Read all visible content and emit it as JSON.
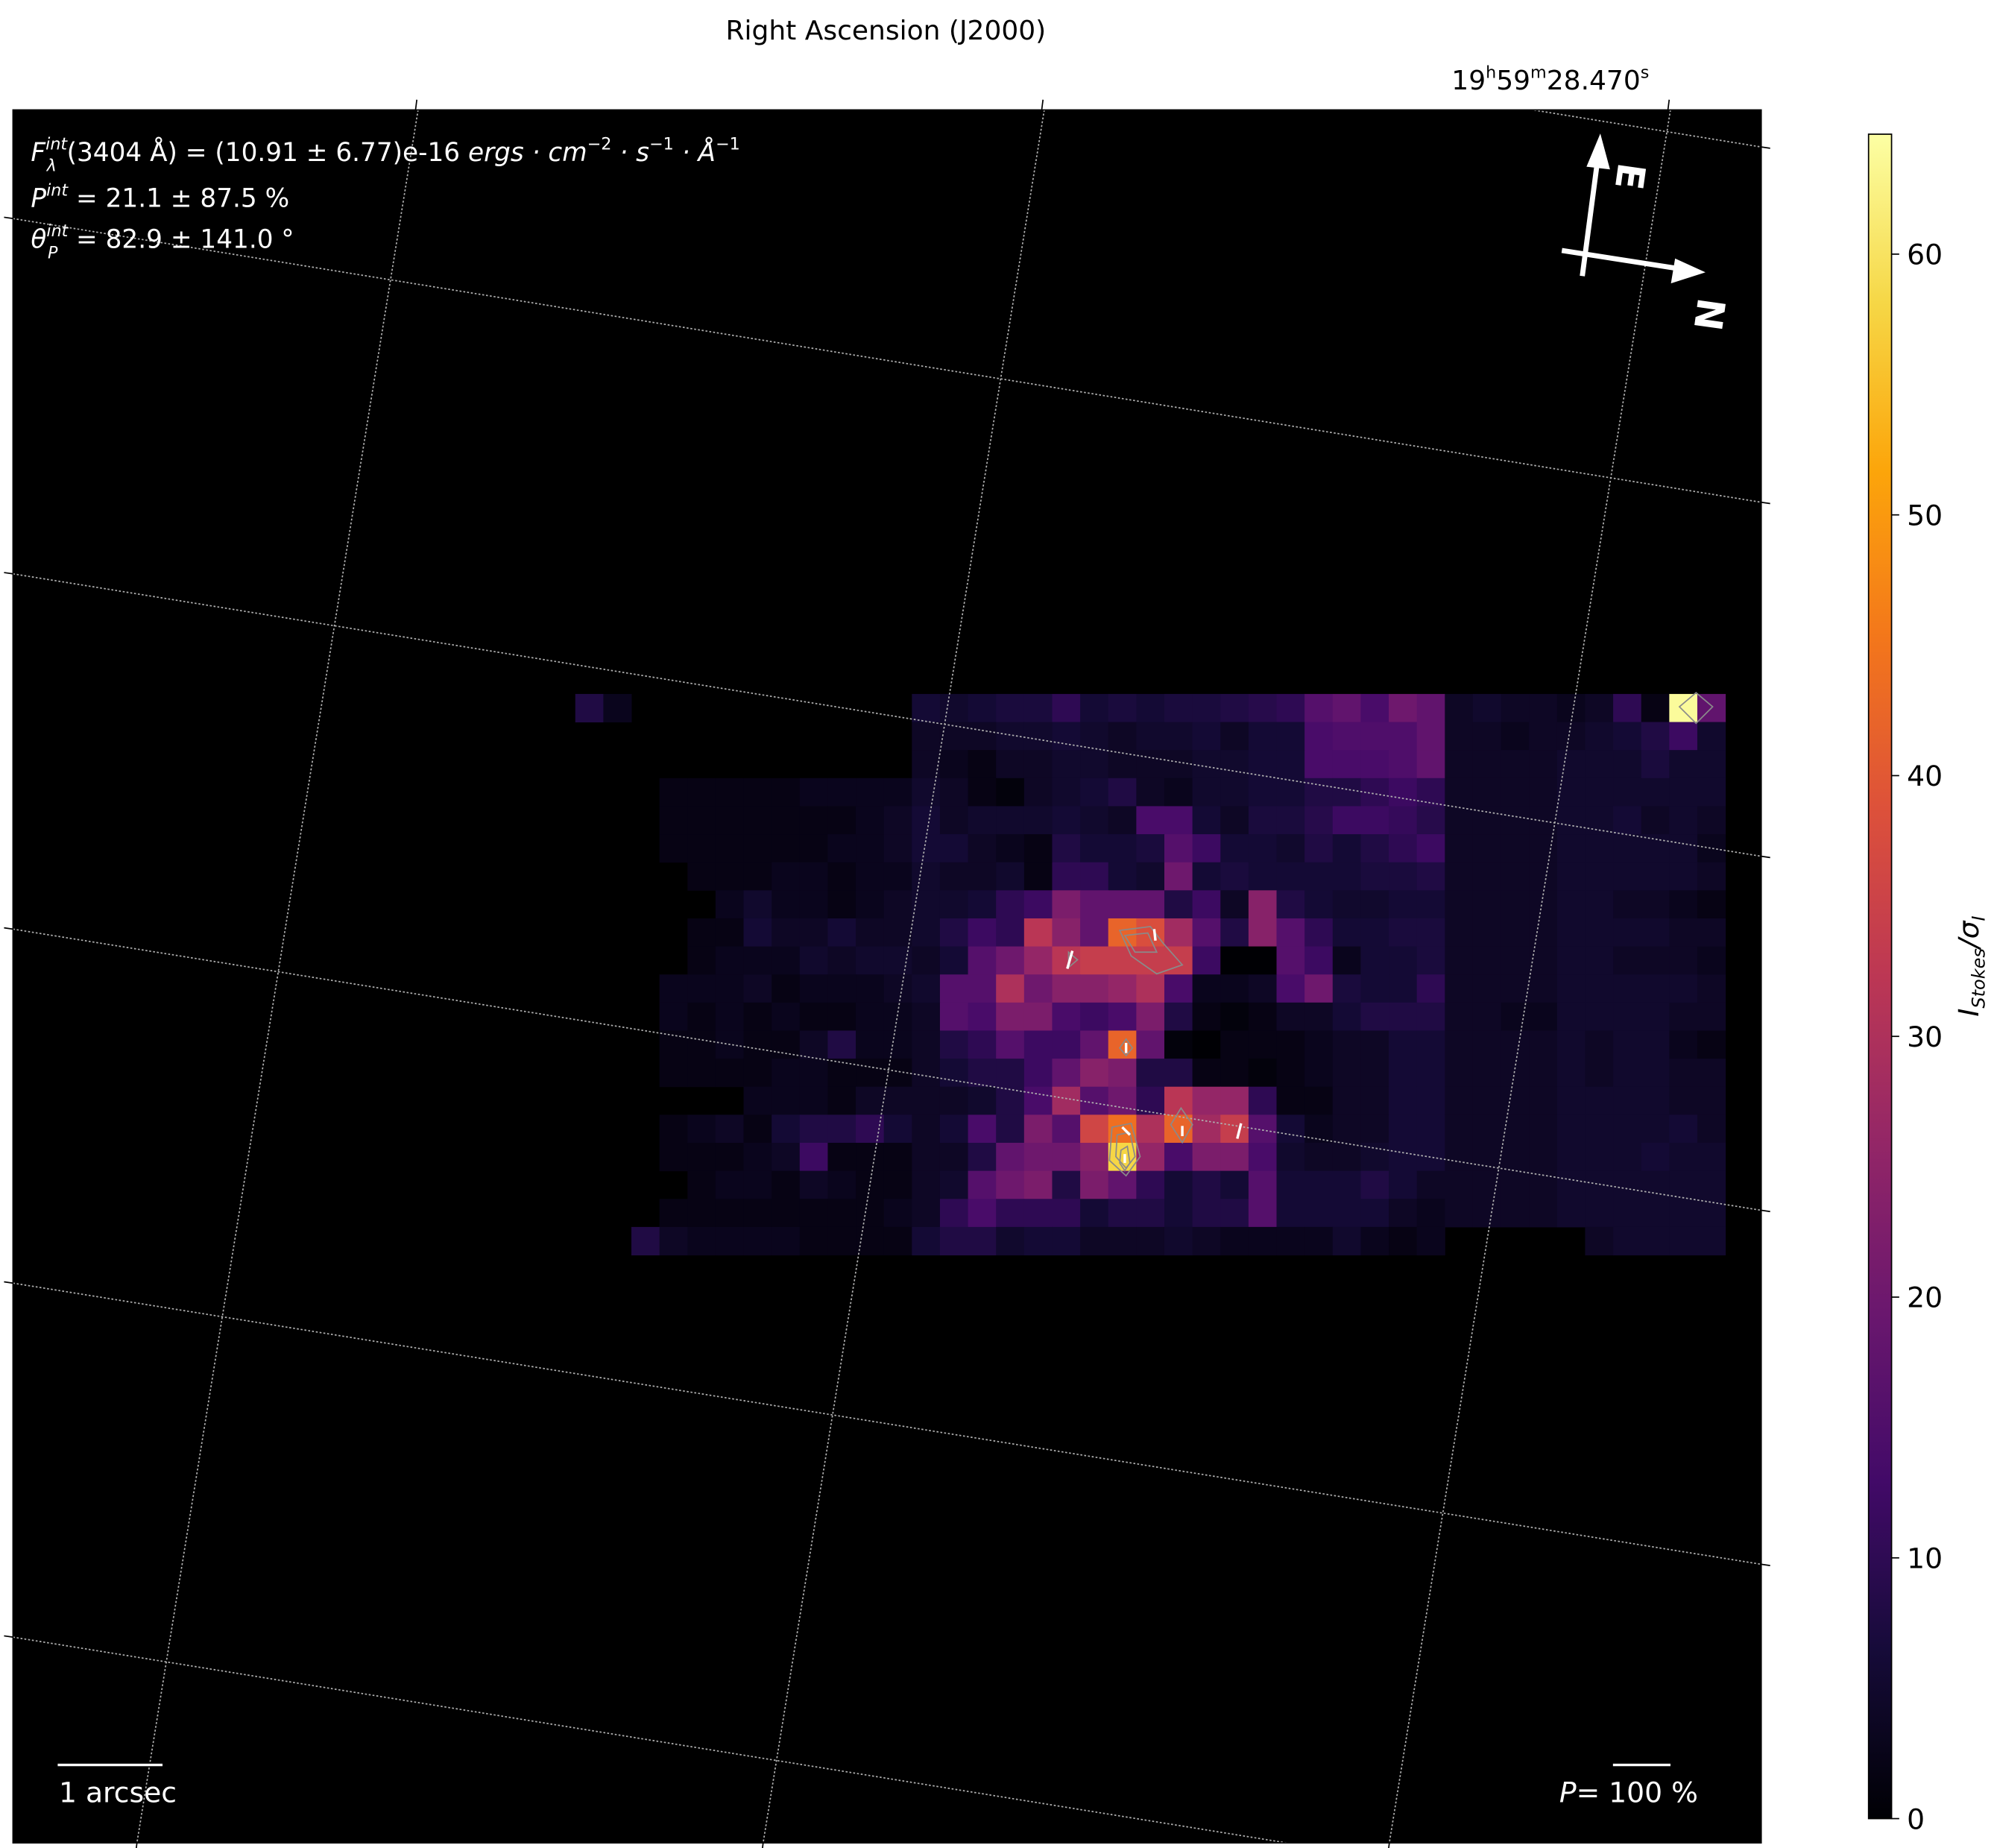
{
  "chart_data": {
    "type": "heatmap",
    "title": "",
    "xlabel": "Right Ascension (J2000)",
    "x_tick_label": {
      "h": "19",
      "hs": "h",
      "m": "59",
      "ms": "m",
      "s": "28.470",
      "ss": "s"
    },
    "colormap": "inferno",
    "colorbar": {
      "label_main": "I",
      "label_sub": "Stokes",
      "label_div": "/σ",
      "label_sub2": "I",
      "range": [
        0,
        64.6
      ],
      "ticks": [
        "0",
        "10",
        "20",
        "30",
        "40",
        "50",
        "60"
      ]
    },
    "grid": true,
    "values": [
      [
        8,
        3,
        null,
        null,
        null,
        null,
        null,
        null,
        null,
        null,
        null,
        null,
        6,
        5,
        6,
        7,
        7,
        10,
        6,
        7,
        6,
        7,
        7,
        8,
        9,
        10,
        16,
        18,
        14,
        20,
        18,
        4,
        5,
        4,
        4,
        3,
        4,
        10,
        2,
        64,
        18
      ],
      [
        null,
        null,
        null,
        null,
        null,
        null,
        null,
        null,
        null,
        null,
        null,
        null,
        4,
        4,
        4,
        5,
        5,
        6,
        5,
        4,
        5,
        5,
        6,
        4,
        6,
        6,
        14,
        15,
        15,
        15,
        18,
        4,
        4,
        3,
        4,
        4,
        5,
        6,
        8,
        12,
        5
      ],
      [
        null,
        null,
        null,
        null,
        null,
        null,
        null,
        null,
        null,
        null,
        null,
        null,
        4,
        3,
        2,
        4,
        4,
        5,
        5,
        4,
        4,
        4,
        5,
        5,
        6,
        6,
        14,
        14,
        14,
        15,
        18,
        4,
        4,
        4,
        4,
        5,
        5,
        5,
        7,
        5,
        5
      ],
      [
        null,
        null,
        null,
        2,
        2,
        2,
        2,
        2,
        3,
        3,
        3,
        3,
        5,
        4,
        2,
        1,
        4,
        5,
        6,
        8,
        4,
        3,
        5,
        5,
        6,
        6,
        8,
        8,
        10,
        12,
        10,
        4,
        4,
        4,
        4,
        5,
        5,
        5,
        5,
        5,
        5
      ],
      [
        null,
        null,
        null,
        2,
        2,
        2,
        2,
        2,
        2,
        2,
        3,
        4,
        6,
        4,
        5,
        5,
        5,
        6,
        5,
        4,
        14,
        14,
        6,
        4,
        7,
        7,
        9,
        12,
        12,
        11,
        9,
        4,
        4,
        4,
        4,
        5,
        5,
        6,
        4,
        5,
        4
      ],
      [
        null,
        null,
        null,
        2,
        2,
        2,
        2,
        2,
        2,
        3,
        3,
        4,
        6,
        6,
        4,
        3,
        2,
        8,
        6,
        6,
        7,
        16,
        12,
        6,
        6,
        5,
        8,
        6,
        8,
        10,
        12,
        4,
        4,
        4,
        4,
        5,
        5,
        5,
        5,
        5,
        3
      ],
      [
        null,
        null,
        null,
        null,
        2,
        2,
        2,
        3,
        3,
        2,
        3,
        3,
        5,
        4,
        4,
        5,
        2,
        10,
        10,
        6,
        5,
        20,
        6,
        7,
        6,
        6,
        6,
        6,
        7,
        7,
        8,
        4,
        4,
        4,
        4,
        5,
        5,
        5,
        5,
        5,
        4
      ],
      [
        null,
        null,
        null,
        null,
        null,
        3,
        5,
        3,
        3,
        2,
        3,
        4,
        5,
        5,
        6,
        10,
        12,
        22,
        18,
        18,
        18,
        8,
        12,
        4,
        24,
        8,
        6,
        5,
        5,
        6,
        6,
        4,
        4,
        4,
        4,
        5,
        5,
        4,
        4,
        3,
        2
      ],
      [
        null,
        null,
        null,
        null,
        2,
        2,
        6,
        4,
        4,
        6,
        4,
        4,
        5,
        8,
        12,
        10,
        32,
        24,
        18,
        42,
        38,
        28,
        16,
        8,
        24,
        16,
        10,
        6,
        6,
        7,
        7,
        4,
        4,
        4,
        4,
        5,
        5,
        5,
        5,
        4,
        4
      ],
      [
        null,
        null,
        null,
        null,
        2,
        3,
        3,
        3,
        5,
        4,
        5,
        5,
        4,
        6,
        16,
        20,
        26,
        32,
        34,
        34,
        34,
        34,
        12,
        0,
        0,
        16,
        12,
        3,
        6,
        6,
        7,
        4,
        4,
        4,
        4,
        5,
        5,
        4,
        4,
        4,
        3
      ],
      [
        null,
        null,
        null,
        3,
        3,
        3,
        4,
        2,
        3,
        3,
        3,
        4,
        5,
        16,
        16,
        30,
        20,
        24,
        24,
        26,
        30,
        14,
        3,
        3,
        4,
        14,
        20,
        7,
        6,
        6,
        10,
        4,
        4,
        4,
        4,
        5,
        5,
        5,
        5,
        5,
        4
      ],
      [
        null,
        null,
        null,
        3,
        2,
        3,
        2,
        3,
        2,
        2,
        3,
        3,
        4,
        16,
        14,
        22,
        22,
        14,
        12,
        14,
        22,
        8,
        2,
        1,
        2,
        4,
        4,
        6,
        8,
        8,
        8,
        4,
        4,
        3,
        3,
        5,
        5,
        5,
        5,
        4,
        4
      ],
      [
        null,
        null,
        null,
        2,
        2,
        3,
        2,
        2,
        4,
        8,
        3,
        3,
        4,
        8,
        10,
        16,
        12,
        12,
        18,
        42,
        18,
        1,
        0,
        2,
        2,
        2,
        3,
        4,
        4,
        6,
        6,
        4,
        4,
        4,
        4,
        5,
        4,
        5,
        5,
        3,
        2
      ],
      [
        null,
        null,
        null,
        2,
        2,
        2,
        2,
        3,
        3,
        2,
        2,
        2,
        4,
        6,
        8,
        8,
        12,
        18,
        24,
        22,
        8,
        8,
        2,
        2,
        1,
        2,
        3,
        4,
        4,
        6,
        6,
        4,
        4,
        4,
        4,
        5,
        4,
        5,
        5,
        4,
        4
      ],
      [
        null,
        null,
        null,
        null,
        null,
        null,
        3,
        3,
        3,
        2,
        4,
        4,
        4,
        4,
        5,
        8,
        14,
        28,
        16,
        20,
        10,
        32,
        26,
        26,
        10,
        2,
        2,
        4,
        4,
        6,
        6,
        4,
        4,
        4,
        4,
        5,
        5,
        5,
        5,
        4,
        4
      ],
      [
        null,
        null,
        null,
        2,
        3,
        4,
        2,
        6,
        8,
        8,
        10,
        6,
        4,
        6,
        14,
        8,
        22,
        16,
        36,
        44,
        30,
        42,
        28,
        34,
        16,
        6,
        3,
        4,
        4,
        6,
        6,
        4,
        4,
        4,
        4,
        5,
        5,
        5,
        5,
        6,
        4
      ],
      [
        null,
        null,
        null,
        2,
        2,
        2,
        3,
        4,
        12,
        2,
        2,
        2,
        4,
        4,
        8,
        18,
        20,
        20,
        24,
        58,
        26,
        14,
        22,
        22,
        14,
        5,
        4,
        4,
        5,
        6,
        6,
        4,
        4,
        4,
        4,
        5,
        5,
        5,
        6,
        5,
        5
      ],
      [
        null,
        null,
        null,
        null,
        2,
        3,
        3,
        2,
        4,
        3,
        2,
        2,
        4,
        5,
        16,
        20,
        22,
        8,
        22,
        18,
        10,
        6,
        8,
        6,
        16,
        6,
        6,
        6,
        8,
        6,
        4,
        4,
        4,
        4,
        4,
        5,
        5,
        5,
        5,
        5,
        5
      ],
      [
        null,
        null,
        null,
        2,
        2,
        2,
        2,
        2,
        2,
        2,
        2,
        3,
        4,
        10,
        14,
        10,
        10,
        10,
        6,
        8,
        8,
        6,
        8,
        8,
        16,
        6,
        6,
        6,
        6,
        4,
        3,
        4,
        4,
        4,
        4,
        5,
        5,
        5,
        5,
        5,
        5
      ],
      [
        null,
        null,
        8,
        4,
        3,
        3,
        3,
        3,
        2,
        2,
        2,
        2,
        6,
        8,
        8,
        5,
        6,
        6,
        4,
        4,
        4,
        5,
        4,
        3,
        3,
        3,
        3,
        5,
        3,
        2,
        3,
        null,
        null,
        null,
        null,
        null,
        4,
        5,
        5,
        5,
        5
      ]
    ]
  },
  "annotations": {
    "flux": {
      "F": "F",
      "sub": "λ",
      "sup": "int",
      "text": "(3404 Å) = (10.91 ± 6.77)e-16 ",
      "unit1": "ergs · cm",
      "exp1": "−2",
      "unit2": " · s",
      "exp2": "−1",
      "unit3": " · Å",
      "exp3": "−1"
    },
    "pol": {
      "P": "P",
      "sup": "int",
      "text": " = 21.1 ± 87.5 %"
    },
    "angle": {
      "theta": "θ",
      "sub": "P",
      "sup": "int",
      "text": " = 82.9 ± 141.0 °"
    }
  },
  "compass": {
    "east": "E",
    "north": "N"
  },
  "scalebar": {
    "label": "1 arcsec"
  },
  "pol_scale": {
    "P": "P",
    "text": "= 100 %"
  }
}
